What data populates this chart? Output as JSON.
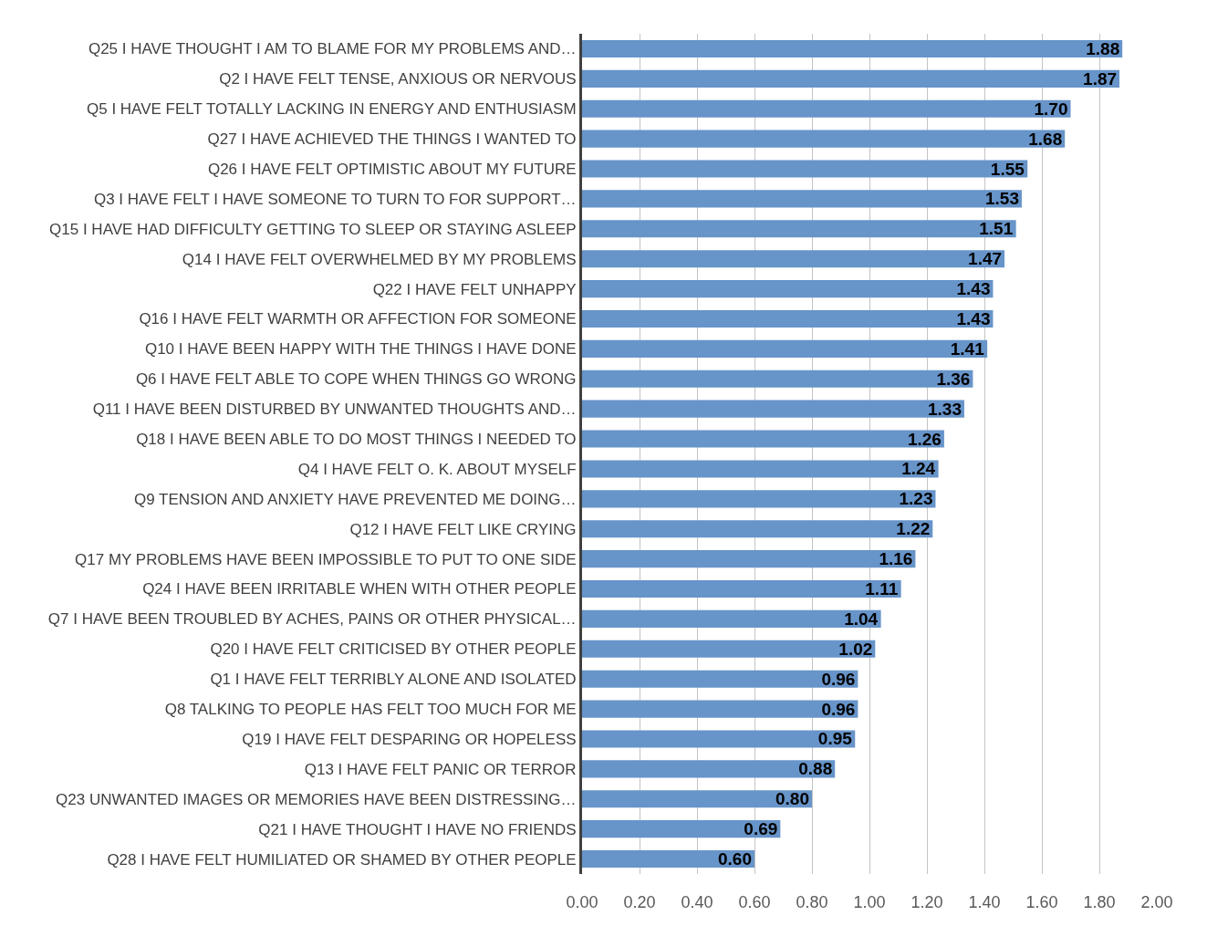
{
  "chart_data": {
    "type": "bar",
    "orientation": "horizontal",
    "categories": [
      "Q25 I HAVE THOUGHT I AM TO BLAME FOR MY PROBLEMS AND…",
      "Q2 I HAVE FELT TENSE, ANXIOUS OR NERVOUS",
      "Q5 I HAVE FELT TOTALLY LACKING IN ENERGY AND ENTHUSIASM",
      "Q27 I HAVE ACHIEVED THE THINGS I WANTED TO",
      "Q26 I HAVE FELT OPTIMISTIC ABOUT MY FUTURE",
      "Q3 I HAVE FELT I HAVE SOMEONE TO TURN TO FOR SUPPORT…",
      "Q15 I HAVE HAD DIFFICULTY GETTING TO SLEEP OR STAYING ASLEEP",
      "Q14 I HAVE FELT OVERWHELMED BY MY PROBLEMS",
      "Q22 I HAVE FELT UNHAPPY",
      "Q16 I HAVE FELT WARMTH OR AFFECTION FOR SOMEONE",
      "Q10 I HAVE BEEN HAPPY WITH THE THINGS I HAVE DONE",
      "Q6 I HAVE FELT ABLE TO COPE WHEN THINGS GO WRONG",
      "Q11 I HAVE BEEN DISTURBED BY UNWANTED THOUGHTS AND…",
      "Q18 I HAVE BEEN ABLE TO DO MOST THINGS I NEEDED TO",
      "Q4 I HAVE FELT O. K. ABOUT MYSELF",
      "Q9 TENSION AND ANXIETY HAVE PREVENTED ME DOING…",
      "Q12 I HAVE FELT LIKE CRYING",
      "Q17 MY PROBLEMS HAVE BEEN IMPOSSIBLE TO PUT TO ONE SIDE",
      "Q24 I HAVE BEEN IRRITABLE WHEN WITH OTHER PEOPLE",
      "Q7 I HAVE BEEN TROUBLED BY ACHES, PAINS OR OTHER PHYSICAL…",
      "Q20 I HAVE FELT CRITICISED BY OTHER PEOPLE",
      "Q1 I HAVE FELT TERRIBLY ALONE AND ISOLATED",
      "Q8 TALKING TO PEOPLE HAS FELT TOO MUCH FOR ME",
      "Q19 I HAVE FELT DESPARING OR HOPELESS",
      "Q13 I HAVE FELT PANIC OR TERROR",
      "Q23 UNWANTED IMAGES OR MEMORIES HAVE BEEN DISTRESSING…",
      "Q21 I HAVE THOUGHT I HAVE NO FRIENDS",
      "Q28 I HAVE FELT HUMILIATED OR SHAMED BY OTHER PEOPLE"
    ],
    "values": [
      1.88,
      1.87,
      1.7,
      1.68,
      1.55,
      1.53,
      1.51,
      1.47,
      1.43,
      1.43,
      1.41,
      1.36,
      1.33,
      1.26,
      1.24,
      1.23,
      1.22,
      1.16,
      1.11,
      1.04,
      1.02,
      0.96,
      0.96,
      0.95,
      0.88,
      0.8,
      0.69,
      0.6
    ],
    "value_labels": [
      "1.88",
      "1.87",
      "1.70",
      "1.68",
      "1.55",
      "1.53",
      "1.51",
      "1.47",
      "1.43",
      "1.43",
      "1.41",
      "1.36",
      "1.33",
      "1.26",
      "1.24",
      "1.23",
      "1.22",
      "1.16",
      "1.11",
      "1.04",
      "1.02",
      "0.96",
      "0.96",
      "0.95",
      "0.88",
      "0.80",
      "0.69",
      "0.60"
    ],
    "color": "#6794c9",
    "xlim": [
      0,
      2
    ],
    "xticks": [
      {
        "value": 0,
        "label": "0.00"
      },
      {
        "value": 0.2,
        "label": "0.20"
      },
      {
        "value": 0.4,
        "label": "0.40"
      },
      {
        "value": 0.6,
        "label": "0.60"
      },
      {
        "value": 0.8,
        "label": "0.80"
      },
      {
        "value": 1.0,
        "label": "1.00"
      },
      {
        "value": 1.2,
        "label": "1.20"
      },
      {
        "value": 1.4,
        "label": "1.40"
      },
      {
        "value": 1.6,
        "label": "1.60"
      },
      {
        "value": 1.8,
        "label": "1.80"
      },
      {
        "value": 2.0,
        "label": "2.00"
      }
    ],
    "grid": "x"
  }
}
